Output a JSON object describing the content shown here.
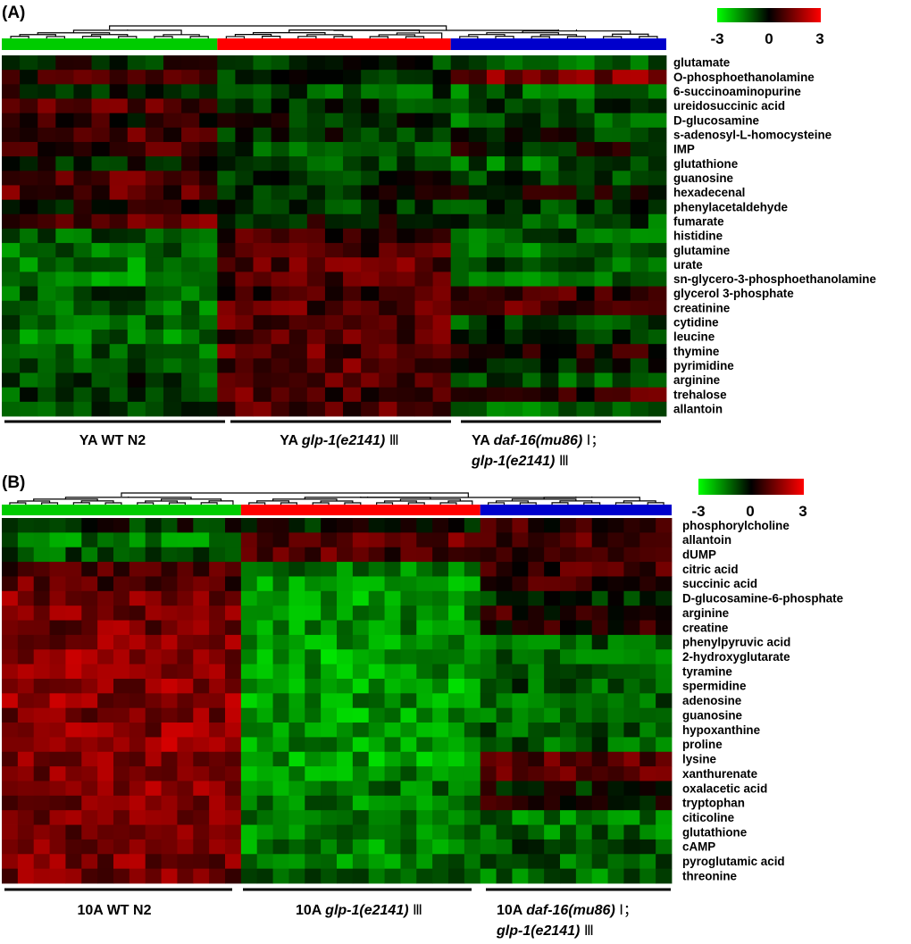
{
  "chart_data": [
    {
      "type": "heatmap",
      "panel": "(A)",
      "title": "",
      "colorscale": {
        "min": -3,
        "mid": 0,
        "max": 3,
        "low_color": "#00ff00",
        "mid_color": "#000000",
        "high_color": "#ff0000",
        "tick_labels": [
          "-3",
          "0",
          "3"
        ]
      },
      "groups": [
        {
          "name": "YA WT N2",
          "label_parts": [
            "YA WT N2"
          ],
          "color": "#00cc00",
          "n_samples": 12,
          "mean_pattern": [
            -0.3,
            0.6,
            -0.2,
            0.9,
            0.3,
            1.0,
            0.8,
            -0.3,
            1.1,
            1.0,
            0.1,
            1.0,
            -1.0,
            -1.3,
            -1.4,
            -1.4,
            -1.0,
            -1.2,
            -1.1,
            -1.3,
            -1.0,
            -1.0,
            -0.7,
            -0.8,
            -0.9
          ]
        },
        {
          "name": "YA glp-1(e2141) III",
          "label_parts": [
            "YA ",
            "glp-1(e2141)",
            " Ⅲ"
          ],
          "color": "#ff0000",
          "n_samples": 13,
          "mean_pattern": [
            -0.6,
            -0.6,
            -0.9,
            -0.5,
            -0.3,
            -0.4,
            -0.8,
            -0.9,
            -0.4,
            -0.3,
            -0.5,
            -0.1,
            0.7,
            0.8,
            1.0,
            0.9,
            0.8,
            1.0,
            0.9,
            1.0,
            1.0,
            1.0,
            0.9,
            0.9,
            1.0
          ]
        },
        {
          "name": "YA daf-16(mu86) I ; glp-1(e2141) III",
          "label_parts": [
            "YA ",
            "daf-16(mu86)",
            " Ⅰ；",
            "glp-1(e2141)",
            " Ⅲ"
          ],
          "color": "#0000cc",
          "n_samples": 12,
          "mean_pattern": [
            -1.0,
            1.3,
            -1.1,
            -0.6,
            -1.0,
            -0.4,
            -0.1,
            -1.1,
            -0.6,
            0.1,
            -0.5,
            -0.9,
            -1.0,
            -1.2,
            -1.0,
            -1.3,
            0.6,
            0.8,
            -0.7,
            -0.4,
            0.3,
            -0.2,
            -0.9,
            0.8,
            -1.4
          ]
        }
      ],
      "metabolites": [
        "glutamate",
        "O-phosphoethanolamine",
        "6-succinoaminopurine",
        "ureidosuccinic acid",
        "D-glucosamine",
        "s-adenosyl-L-homocysteine",
        "IMP",
        "glutathione",
        "guanosine",
        "hexadecenal",
        "phenylacetaldehyde",
        "fumarate",
        "histidine",
        "glutamine",
        "urate",
        "sn-glycero-3-phosphoethanolamine",
        "glycerol 3-phosphate",
        "creatinine",
        "cytidine",
        "leucine",
        "thymine",
        "pyrimidine",
        "arginine",
        "trehalose",
        "allantoin"
      ]
    },
    {
      "type": "heatmap",
      "panel": "(B)",
      "title": "",
      "colorscale": {
        "min": -3,
        "mid": 0,
        "max": 3,
        "low_color": "#00ff00",
        "mid_color": "#000000",
        "high_color": "#ff0000",
        "tick_labels": [
          "-3",
          "0",
          "3"
        ]
      },
      "groups": [
        {
          "name": "10A WT N2",
          "label_parts": [
            "10A WT N2"
          ],
          "color": "#00cc00",
          "n_samples": 15,
          "mean_pattern": [
            -0.5,
            -1.4,
            -0.9,
            0.9,
            1.0,
            1.4,
            1.5,
            1.4,
            1.6,
            1.6,
            1.6,
            1.6,
            1.6,
            1.5,
            1.6,
            1.7,
            1.6,
            1.6,
            1.6,
            1.5,
            1.4,
            1.4,
            1.5,
            1.4,
            1.3
          ]
        },
        {
          "name": "10A glp-1(e2141) III",
          "label_parts": [
            "10A ",
            "glp-1(e2141)",
            " Ⅲ"
          ],
          "color": "#ff0000",
          "n_samples": 15,
          "mean_pattern": [
            -0.3,
            1.0,
            1.0,
            -1.3,
            -1.6,
            -1.8,
            -1.7,
            -1.6,
            -1.7,
            -1.9,
            -1.8,
            -1.9,
            -1.8,
            -1.8,
            -1.7,
            -1.7,
            -1.8,
            -1.6,
            -1.4,
            -1.4,
            -1.4,
            -1.5,
            -1.5,
            -1.4,
            -1.3
          ]
        },
        {
          "name": "10A daf-16(mu86) I ; glp-1(e2141) III",
          "label_parts": [
            "10A ",
            "daf-16(mu86)",
            " Ⅰ；",
            "glp-1(e2141)",
            " Ⅲ"
          ],
          "color": "#0000cc",
          "n_samples": 12,
          "mean_pattern": [
            0.6,
            0.8,
            0.4,
            0.8,
            0.8,
            -0.7,
            0.4,
            0.2,
            -1.1,
            -1.1,
            -1.0,
            -1.0,
            -1.1,
            -1.0,
            -1.0,
            -1.0,
            0.9,
            1.0,
            -0.2,
            0.2,
            -1.3,
            -1.3,
            -1.0,
            -1.2,
            -1.2
          ]
        }
      ],
      "metabolites": [
        "phosphorylcholine",
        "allantoin",
        "dUMP",
        "citric acid",
        "succinic acid",
        "D-glucosamine-6-phosphate",
        "arginine",
        "creatine",
        "phenylpyruvic acid",
        "2-hydroxyglutarate",
        "tyramine",
        "spermidine",
        "adenosine",
        "guanosine",
        "hypoxanthine",
        "proline",
        "lysine",
        "xanthurenate",
        "oxalacetic acid",
        "tryptophan",
        "citicoline",
        "glutathione",
        "cAMP",
        "pyroglutamic acid",
        "threonine"
      ]
    }
  ]
}
